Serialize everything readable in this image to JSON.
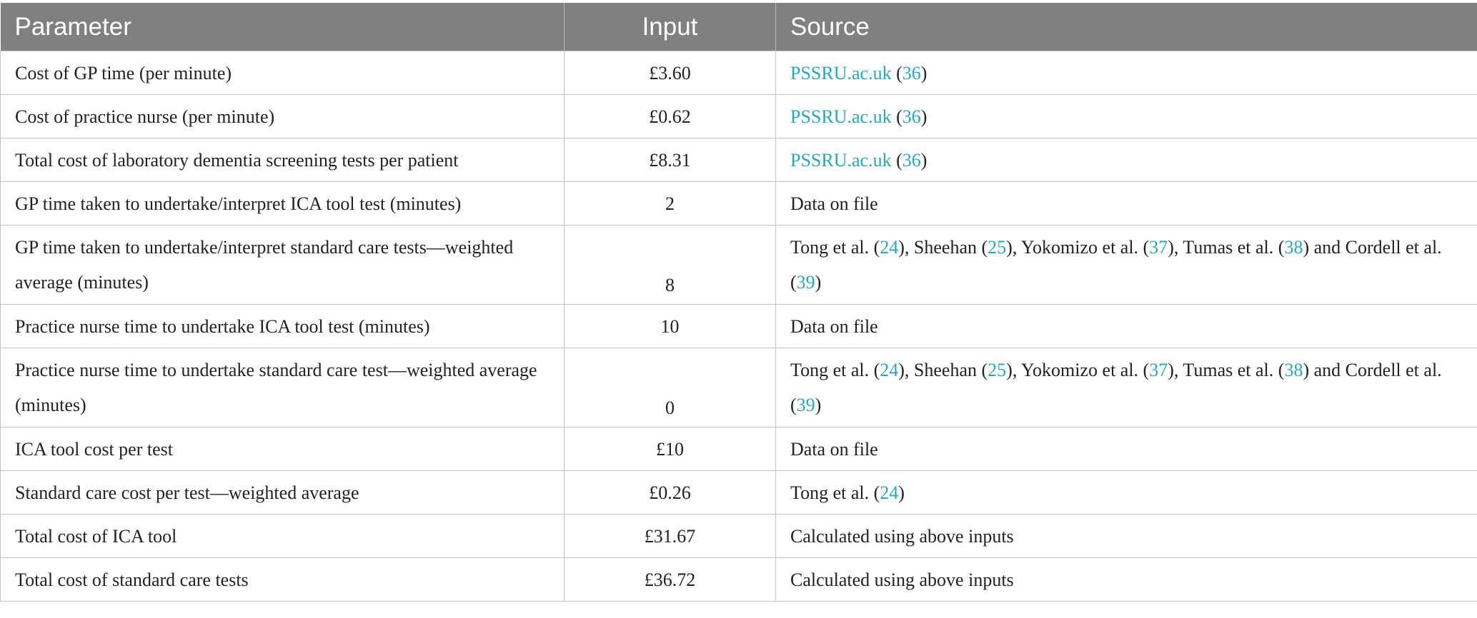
{
  "header": {
    "parameter": "Parameter",
    "input": "Input",
    "source": "Source"
  },
  "rows": [
    {
      "param": "Cost of GP time (per minute)",
      "input": "£3.60",
      "source": [
        {
          "t": "PSSRU.ac.uk",
          "link": true
        },
        {
          "t": " ("
        },
        {
          "t": "36",
          "link": true
        },
        {
          "t": ")"
        }
      ]
    },
    {
      "param": "Cost of practice nurse (per minute)",
      "input": "£0.62",
      "source": [
        {
          "t": "PSSRU.ac.uk",
          "link": true
        },
        {
          "t": " ("
        },
        {
          "t": "36",
          "link": true
        },
        {
          "t": ")"
        }
      ]
    },
    {
      "param": "Total cost of laboratory dementia screening tests per patient",
      "input": "£8.31",
      "source": [
        {
          "t": "PSSRU.ac.uk",
          "link": true
        },
        {
          "t": " ("
        },
        {
          "t": "36",
          "link": true
        },
        {
          "t": ")"
        }
      ]
    },
    {
      "param": "GP time taken to undertake/interpret ICA tool test (minutes)",
      "input": "2",
      "source": [
        {
          "t": "Data on file"
        }
      ]
    },
    {
      "param": "GP time taken to undertake/interpret standard care tests—weighted average (minutes)",
      "input": "8",
      "tall": true,
      "source": [
        {
          "t": "Tong et al. ("
        },
        {
          "t": "24",
          "link": true
        },
        {
          "t": "), Sheehan ("
        },
        {
          "t": "25",
          "link": true
        },
        {
          "t": "), Yokomizo et al. ("
        },
        {
          "t": "37",
          "link": true
        },
        {
          "t": "), Tumas et al. ("
        },
        {
          "t": "38",
          "link": true
        },
        {
          "t": ") and Cordell et al. ("
        },
        {
          "t": "39",
          "link": true
        },
        {
          "t": ")"
        }
      ]
    },
    {
      "param": "Practice nurse time to undertake ICA tool test (minutes)",
      "input": "10",
      "source": [
        {
          "t": "Data on file"
        }
      ]
    },
    {
      "param": "Practice nurse time to undertake standard care test—weighted average (minutes)",
      "input": "0",
      "tall": true,
      "source": [
        {
          "t": "Tong et al. ("
        },
        {
          "t": "24",
          "link": true
        },
        {
          "t": "), Sheehan ("
        },
        {
          "t": "25",
          "link": true
        },
        {
          "t": "), Yokomizo et al. ("
        },
        {
          "t": "37",
          "link": true
        },
        {
          "t": "), Tumas et al. ("
        },
        {
          "t": "38",
          "link": true
        },
        {
          "t": ") and Cordell et al. ("
        },
        {
          "t": "39",
          "link": true
        },
        {
          "t": ")"
        }
      ]
    },
    {
      "param": "ICA tool cost per test",
      "input": "£10",
      "source": [
        {
          "t": "Data on file"
        }
      ]
    },
    {
      "param": "Standard care cost per test—weighted average",
      "input": "£0.26",
      "source": [
        {
          "t": "Tong et al. ("
        },
        {
          "t": "24",
          "link": true
        },
        {
          "t": ")"
        }
      ]
    },
    {
      "param": "Total cost of ICA tool",
      "input": "£31.67",
      "source": [
        {
          "t": "Calculated using above inputs"
        }
      ]
    },
    {
      "param": "Total cost of standard care tests",
      "input": "£36.72",
      "source": [
        {
          "t": "Calculated using above inputs"
        }
      ]
    }
  ],
  "colors": {
    "header_bg": "#808080",
    "header_text": "#ffffff",
    "link": "#2aa7b8",
    "border": "#c4c4c4"
  }
}
